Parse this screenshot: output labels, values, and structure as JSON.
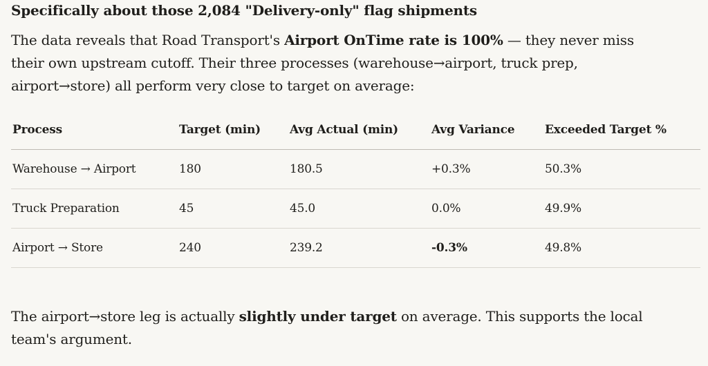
{
  "heading": "Specifically about those 2,084 \"Delivery-only\" flag shipments",
  "intro": {
    "l1_a": "The data reveals that Road Transport's ",
    "l1_b": "Airport OnTime rate is 100%",
    "l1_c": " — they never miss",
    "l2": "their own upstream cutoff. Their three processes (warehouse→airport, truck prep,",
    "l3": "airport→store) all perform very close to target on average:"
  },
  "table": {
    "headers": [
      "Process",
      "Target (min)",
      "Avg Actual (min)",
      "Avg Variance",
      "Exceeded Target %"
    ],
    "rows": [
      [
        "Warehouse → Airport",
        "180",
        "180.5",
        "+0.3%",
        "50.3%"
      ],
      [
        "Truck Preparation",
        "45",
        "45.0",
        "0.0%",
        "49.9%"
      ],
      [
        "Airport → Store",
        "240",
        "239.2",
        "-0.3%",
        "49.8%"
      ]
    ]
  },
  "outro": {
    "l1_a": "The airport→store leg is actually ",
    "l1_b": "slightly under target",
    "l1_c": " on average. This supports the local",
    "l2": "team's argument."
  }
}
